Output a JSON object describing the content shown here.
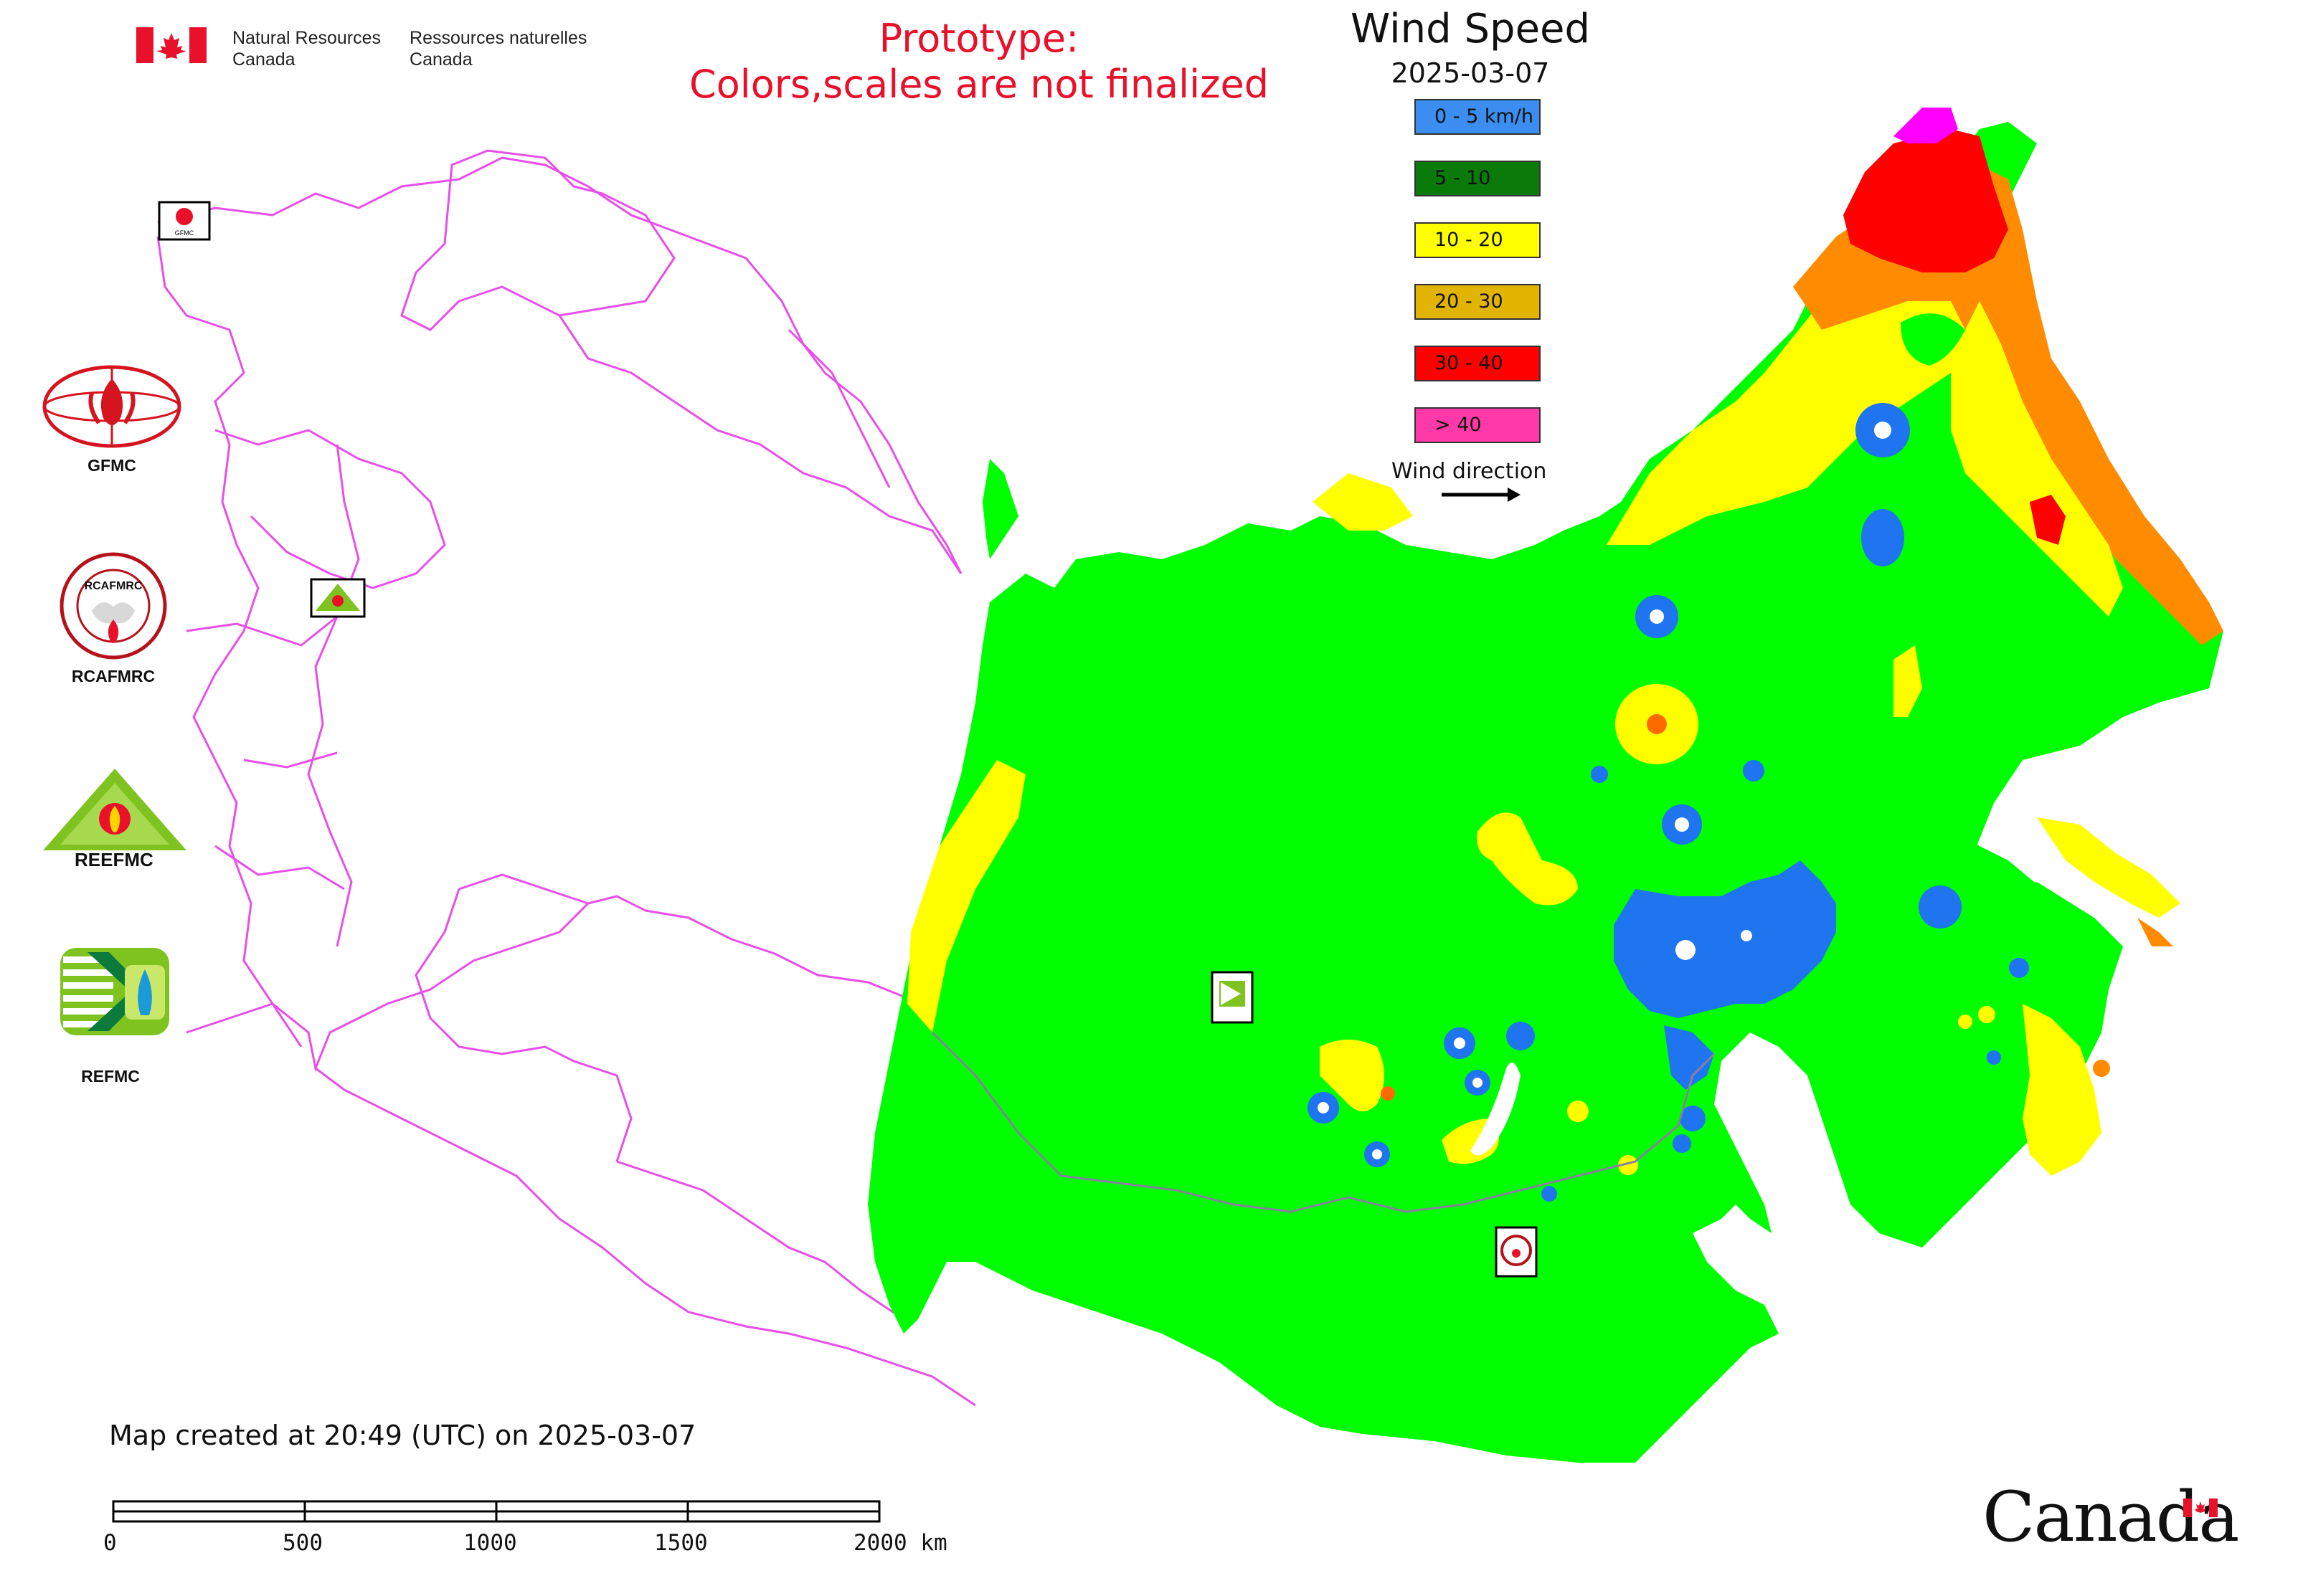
{
  "header": {
    "dept_en_line1": "Natural Resources",
    "dept_en_line2": "Canada",
    "dept_fr_line1": "Ressources naturelles",
    "dept_fr_line2": "Canada",
    "prototype_line1": "Prototype:",
    "prototype_line2": "Colors,scales are not finalized"
  },
  "legend": {
    "title": "Wind Speed",
    "date": "2025-03-07",
    "items": [
      {
        "label": "0 - 5 km/h",
        "color": "#3b8ef0"
      },
      {
        "label": "5 - 10",
        "color": "#0a7a0a"
      },
      {
        "label": "10 - 20",
        "color": "#ffff00"
      },
      {
        "label": "20 - 30",
        "color": "#e0b400"
      },
      {
        "label": "30 - 40",
        "color": "#ff0000"
      },
      {
        "label": "> 40",
        "color": "#ff3aa8"
      }
    ],
    "wind_direction_label": "Wind direction"
  },
  "logos": {
    "gfmc": "GFMC",
    "rcafmrc": "RCAFMRC",
    "reefmc": "REEFMC",
    "refmc": "REFMC",
    "rcafmrc_ring_text": "RCAFMRC",
    "reefmc_wordmark": "REEFMC",
    "map_markers": [
      "GFMC",
      "REEFMC",
      "REFMC",
      "RCAFMRC"
    ]
  },
  "map": {
    "land_color": "#00ff00",
    "border_color": "#e84fe8",
    "inner_border_color": "#8a7fa0"
  },
  "footer": {
    "created": "Map created at 20:49 (UTC) on 2025-03-07",
    "scale_ticks": [
      "0",
      "500",
      "1000",
      "1500",
      "2000 km"
    ],
    "canada_wordmark": "Canada"
  }
}
